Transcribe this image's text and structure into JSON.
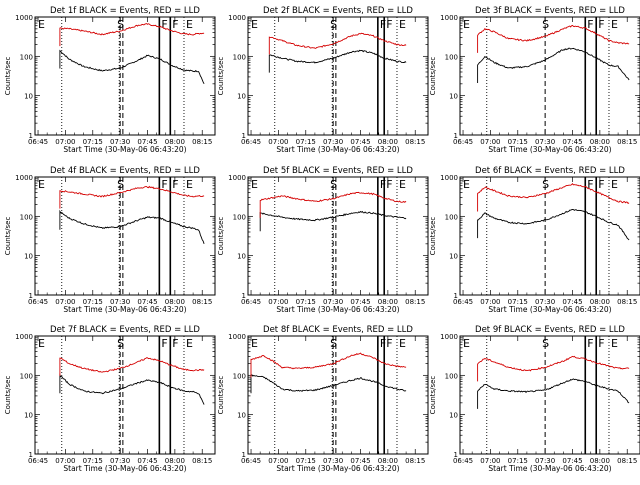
{
  "figure": {
    "x_axis_title": "Start Time (30-May-06 06:43:20)",
    "y_axis_title": "Counts/sec",
    "x_tick_labels": [
      "06:45",
      "07:00",
      "07:15",
      "07:30",
      "07:45",
      "08:00",
      "08:15"
    ],
    "y_tick_labels": [
      "1",
      "10",
      "100",
      "1000"
    ],
    "marker_letters": [
      "E",
      "S",
      "F",
      "F",
      "E"
    ],
    "colors": {
      "events": "#000000",
      "lld": "#d40000",
      "axes": "#000000",
      "background": "#ffffff"
    }
  },
  "chart_data": [
    {
      "type": "line",
      "title": "Det 1f BLACK = Events, RED = LLD",
      "xlabel": "Start Time (30-May-06 06:43:20)",
      "ylabel": "Counts/sec",
      "yscale": "log",
      "ylim": [
        1,
        1000
      ],
      "xlim": [
        "06:43:20",
        "08:22:00"
      ],
      "x": [
        "06:57:00",
        "07:02:00",
        "07:10:00",
        "07:20:00",
        "07:30:00",
        "07:40:00",
        "07:45:00",
        "07:52:00",
        "07:58:00",
        "08:05:00",
        "08:10:00",
        "08:13:00",
        "08:16:00"
      ],
      "series": [
        {
          "name": "Events",
          "values": [
            140,
            85,
            55,
            43,
            50,
            80,
            105,
            85,
            60,
            45,
            42,
            42,
            20
          ]
        },
        {
          "name": "LLD",
          "values": [
            520,
            500,
            440,
            360,
            440,
            620,
            660,
            560,
            450,
            370,
            360,
            380,
            390
          ]
        }
      ],
      "markers": {
        "dotted_x": [
          "06:58:00",
          "07:29:30",
          "08:05:00"
        ],
        "dashed_x": [
          "07:30:00",
          "07:31:30"
        ],
        "solid_x": [
          "07:51:30",
          "07:57:30"
        ]
      }
    },
    {
      "type": "line",
      "title": "Det 2f BLACK = Events, RED = LLD",
      "xlabel": "Start Time (30-May-06 06:43:20)",
      "ylabel": "Counts/sec",
      "yscale": "log",
      "ylim": [
        1,
        1000
      ],
      "xlim": [
        "06:43:20",
        "08:22:00"
      ],
      "x": [
        "06:55:00",
        "07:02:00",
        "07:10:00",
        "07:20:00",
        "07:30:00",
        "07:40:00",
        "07:45:00",
        "07:52:00",
        "07:58:00",
        "08:05:00",
        "08:10:00"
      ],
      "series": [
        {
          "name": "Events",
          "values": [
            110,
            90,
            75,
            70,
            90,
            130,
            140,
            120,
            90,
            75,
            70
          ]
        },
        {
          "name": "LLD",
          "values": [
            320,
            250,
            190,
            160,
            210,
            330,
            380,
            330,
            250,
            200,
            190
          ]
        }
      ],
      "markers": {
        "dotted_x": [
          "06:58:00",
          "07:29:30",
          "08:05:00"
        ],
        "dashed_x": [
          "07:30:00",
          "07:31:30"
        ],
        "solid_x": [
          "07:54:30",
          "07:58:00"
        ]
      }
    },
    {
      "type": "line",
      "title": "Det 3f BLACK = Events, RED = LLD",
      "xlabel": "Start Time (30-May-06 06:43:20)",
      "ylabel": "Counts/sec",
      "yscale": "log",
      "ylim": [
        1,
        1000
      ],
      "xlim": [
        "06:43:20",
        "08:22:00"
      ],
      "x": [
        "06:53:00",
        "06:57:00",
        "07:02:00",
        "07:10:00",
        "07:20:00",
        "07:30:00",
        "07:40:00",
        "07:45:00",
        "07:52:00",
        "07:58:00",
        "08:05:00",
        "08:10:00",
        "08:16:00"
      ],
      "series": [
        {
          "name": "Events",
          "values": [
            60,
            100,
            70,
            50,
            55,
            80,
            150,
            160,
            130,
            90,
            60,
            55,
            25
          ]
        },
        {
          "name": "LLD",
          "values": [
            350,
            500,
            420,
            280,
            250,
            320,
            500,
            600,
            520,
            380,
            250,
            220,
            210
          ]
        }
      ],
      "markers": {
        "dotted_x": [
          "06:58:00",
          "08:05:00"
        ],
        "dashed_x": [
          "07:30:00"
        ],
        "solid_x": [
          "07:52:00",
          "07:58:00"
        ]
      }
    },
    {
      "type": "line",
      "title": "Det 4f BLACK = Events, RED = LLD",
      "xlabel": "Start Time (30-May-06 06:43:20)",
      "ylabel": "Counts/sec",
      "yscale": "log",
      "ylim": [
        1,
        1000
      ],
      "xlim": [
        "06:43:20",
        "08:22:00"
      ],
      "x": [
        "06:57:00",
        "07:02:00",
        "07:10:00",
        "07:20:00",
        "07:30:00",
        "07:40:00",
        "07:45:00",
        "07:52:00",
        "07:58:00",
        "08:05:00",
        "08:10:00",
        "08:13:00",
        "08:16:00"
      ],
      "series": [
        {
          "name": "Events",
          "values": [
            130,
            90,
            65,
            50,
            55,
            80,
            95,
            90,
            70,
            55,
            50,
            45,
            20
          ]
        },
        {
          "name": "LLD",
          "values": [
            450,
            420,
            370,
            320,
            400,
            530,
            560,
            500,
            420,
            340,
            320,
            330,
            330
          ]
        }
      ],
      "markers": {
        "dotted_x": [
          "06:58:00",
          "07:29:30",
          "08:05:00"
        ],
        "dashed_x": [
          "07:30:00",
          "07:31:30"
        ],
        "solid_x": [
          "07:51:30",
          "07:57:30"
        ]
      }
    },
    {
      "type": "line",
      "title": "Det 5f BLACK = Events, RED = LLD",
      "xlabel": "Start Time (30-May-06 06:43:20)",
      "ylabel": "Counts/sec",
      "yscale": "log",
      "ylim": [
        1,
        1000
      ],
      "xlim": [
        "06:43:20",
        "08:22:00"
      ],
      "x": [
        "06:50:00",
        "07:02:00",
        "07:10:00",
        "07:20:00",
        "07:30:00",
        "07:40:00",
        "07:45:00",
        "07:52:00",
        "07:58:00",
        "08:05:00",
        "08:10:00"
      ],
      "series": [
        {
          "name": "Events",
          "values": [
            120,
            95,
            85,
            80,
            95,
            120,
            130,
            120,
            105,
            95,
            90
          ]
        },
        {
          "name": "LLD",
          "values": [
            260,
            330,
            280,
            240,
            280,
            380,
            400,
            370,
            290,
            240,
            230
          ]
        }
      ],
      "markers": {
        "dotted_x": [
          "06:58:00",
          "07:29:30",
          "08:05:00"
        ],
        "dashed_x": [
          "07:30:00",
          "07:31:30"
        ],
        "solid_x": [
          "07:54:30",
          "07:58:00"
        ]
      }
    },
    {
      "type": "line",
      "title": "Det 6f BLACK = Events, RED = LLD",
      "xlabel": "Start Time (30-May-06 06:43:20)",
      "ylabel": "Counts/sec",
      "yscale": "log",
      "ylim": [
        1,
        1000
      ],
      "xlim": [
        "06:43:20",
        "08:22:00"
      ],
      "x": [
        "06:53:00",
        "06:57:00",
        "07:02:00",
        "07:10:00",
        "07:20:00",
        "07:30:00",
        "07:40:00",
        "07:45:00",
        "07:52:00",
        "07:58:00",
        "08:05:00",
        "08:10:00",
        "08:16:00"
      ],
      "series": [
        {
          "name": "Events",
          "values": [
            80,
            120,
            90,
            70,
            65,
            80,
            120,
            150,
            130,
            100,
            70,
            60,
            25
          ]
        },
        {
          "name": "LLD",
          "values": [
            380,
            550,
            450,
            330,
            300,
            380,
            550,
            650,
            560,
            420,
            300,
            240,
            220
          ]
        }
      ],
      "markers": {
        "dotted_x": [
          "06:58:00",
          "08:05:00"
        ],
        "dashed_x": [
          "07:30:00"
        ],
        "solid_x": [
          "07:52:00",
          "07:58:00"
        ]
      }
    },
    {
      "type": "line",
      "title": "Det 7f BLACK = Events, RED = LLD",
      "xlabel": "Start Time (30-May-06 06:43:20)",
      "ylabel": "Counts/sec",
      "yscale": "log",
      "ylim": [
        1,
        1000
      ],
      "xlim": [
        "06:43:20",
        "08:22:00"
      ],
      "x": [
        "06:57:00",
        "07:02:00",
        "07:10:00",
        "07:20:00",
        "07:30:00",
        "07:40:00",
        "07:45:00",
        "07:52:00",
        "07:58:00",
        "08:05:00",
        "08:10:00",
        "08:13:00",
        "08:16:00"
      ],
      "series": [
        {
          "name": "Events",
          "values": [
            100,
            60,
            40,
            35,
            45,
            65,
            75,
            65,
            50,
            40,
            38,
            35,
            18
          ]
        },
        {
          "name": "LLD",
          "values": [
            280,
            200,
            150,
            120,
            150,
            220,
            280,
            230,
            180,
            140,
            135,
            135,
            140
          ]
        }
      ],
      "markers": {
        "dotted_x": [
          "06:58:00",
          "07:29:30",
          "08:05:00"
        ],
        "dashed_x": [
          "07:30:00",
          "07:31:30"
        ],
        "solid_x": [
          "07:51:30",
          "07:57:30"
        ]
      }
    },
    {
      "type": "line",
      "title": "Det 8f BLACK = Events, RED = LLD",
      "xlabel": "Start Time (30-May-06 06:43:20)",
      "ylabel": "Counts/sec",
      "yscale": "log",
      "ylim": [
        1,
        1000
      ],
      "xlim": [
        "06:43:20",
        "08:22:00"
      ],
      "x": [
        "06:45:00",
        "06:52:00",
        "06:57:00",
        "07:02:00",
        "07:10:00",
        "07:20:00",
        "07:30:00",
        "07:40:00",
        "07:45:00",
        "07:52:00",
        "07:58:00",
        "08:05:00",
        "08:10:00"
      ],
      "series": [
        {
          "name": "Events",
          "values": [
            100,
            90,
            65,
            45,
            40,
            42,
            55,
            75,
            85,
            70,
            55,
            45,
            40
          ]
        },
        {
          "name": "LLD",
          "values": [
            250,
            320,
            230,
            160,
            150,
            160,
            200,
            320,
            360,
            280,
            200,
            170,
            160
          ]
        }
      ],
      "markers": {
        "dotted_x": [
          "06:58:00",
          "07:29:30",
          "08:05:00"
        ],
        "dashed_x": [
          "07:30:00",
          "07:31:30"
        ],
        "solid_x": [
          "07:54:30",
          "07:58:00"
        ]
      }
    },
    {
      "type": "line",
      "title": "Det 9f BLACK = Events, RED = LLD",
      "xlabel": "Start Time (30-May-06 06:43:20)",
      "ylabel": "Counts/sec",
      "yscale": "log",
      "ylim": [
        1,
        1000
      ],
      "xlim": [
        "06:43:20",
        "08:22:00"
      ],
      "x": [
        "06:53:00",
        "06:57:00",
        "07:02:00",
        "07:10:00",
        "07:20:00",
        "07:30:00",
        "07:40:00",
        "07:45:00",
        "07:52:00",
        "07:58:00",
        "08:05:00",
        "08:10:00",
        "08:16:00"
      ],
      "series": [
        {
          "name": "Events",
          "values": [
            40,
            60,
            45,
            40,
            38,
            42,
            65,
            80,
            70,
            55,
            45,
            40,
            20
          ]
        },
        {
          "name": "LLD",
          "values": [
            200,
            270,
            220,
            160,
            130,
            160,
            230,
            300,
            260,
            210,
            170,
            150,
            150
          ]
        }
      ],
      "markers": {
        "dotted_x": [
          "06:58:00",
          "08:05:00"
        ],
        "dashed_x": [
          "07:30:00"
        ],
        "solid_x": [
          "07:52:00",
          "07:58:00"
        ]
      }
    }
  ]
}
